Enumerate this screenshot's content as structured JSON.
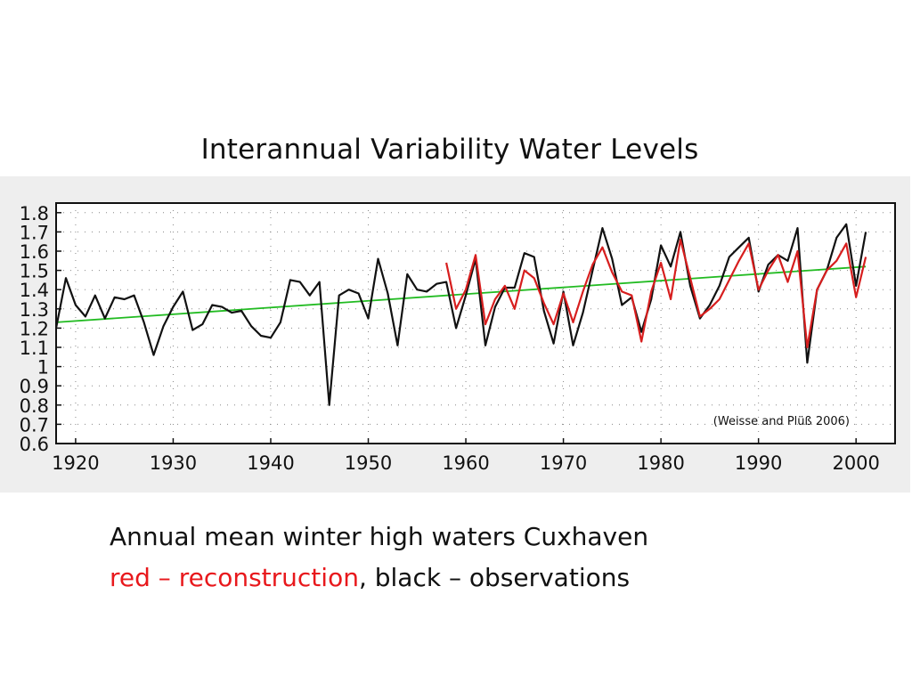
{
  "title": "Interannual Variability Water Levels",
  "caption": {
    "line1": "Annual mean winter high waters Cuxhaven",
    "red_part": "red – reconstruction",
    "black_part": ", black – observations"
  },
  "chart_data": {
    "type": "line",
    "annotation": "(Weisse and Plüß 2006)",
    "xlim": [
      1918,
      2004
    ],
    "ylim": [
      0.6,
      1.85
    ],
    "x_ticks": [
      1920,
      1930,
      1940,
      1950,
      1960,
      1970,
      1980,
      1990,
      2000
    ],
    "y_ticks": [
      0.6,
      0.7,
      0.8,
      0.9,
      1,
      1.1,
      1.2,
      1.3,
      1.4,
      1.5,
      1.6,
      1.7,
      1.8
    ],
    "y_tick_labels": [
      "0.6",
      "0.7",
      "0.8",
      "0.9",
      "1",
      "1.1",
      "1.2",
      "1.3",
      "1.4",
      "1.5",
      "1.6",
      "1.7",
      "1.8"
    ],
    "grid": true,
    "colors": {
      "observations": "#111111",
      "reconstruction": "#d71e1e",
      "trend": "#22bb22"
    },
    "series": [
      {
        "key": "observations",
        "x": [
          1918,
          1919,
          1920,
          1921,
          1922,
          1923,
          1924,
          1925,
          1926,
          1927,
          1928,
          1929,
          1930,
          1931,
          1932,
          1933,
          1934,
          1935,
          1936,
          1937,
          1938,
          1939,
          1940,
          1941,
          1942,
          1943,
          1944,
          1945,
          1946,
          1947,
          1948,
          1949,
          1950,
          1951,
          1952,
          1953,
          1954,
          1955,
          1956,
          1957,
          1958,
          1959,
          1960,
          1961,
          1962,
          1963,
          1964,
          1965,
          1966,
          1967,
          1968,
          1969,
          1970,
          1971,
          1972,
          1973,
          1974,
          1975,
          1976,
          1977,
          1978,
          1979,
          1980,
          1981,
          1982,
          1983,
          1984,
          1985,
          1986,
          1987,
          1988,
          1989,
          1990,
          1991,
          1992,
          1993,
          1994,
          1995,
          1996,
          1997,
          1998,
          1999,
          2000,
          2001
        ],
        "y": [
          1.2,
          1.46,
          1.32,
          1.26,
          1.37,
          1.25,
          1.36,
          1.35,
          1.37,
          1.23,
          1.06,
          1.21,
          1.31,
          1.39,
          1.19,
          1.22,
          1.32,
          1.31,
          1.28,
          1.29,
          1.21,
          1.16,
          1.15,
          1.23,
          1.45,
          1.44,
          1.37,
          1.44,
          0.8,
          1.37,
          1.4,
          1.38,
          1.25,
          1.56,
          1.38,
          1.11,
          1.48,
          1.4,
          1.39,
          1.43,
          1.44,
          1.2,
          1.37,
          1.56,
          1.11,
          1.31,
          1.41,
          1.41,
          1.59,
          1.57,
          1.29,
          1.12,
          1.39,
          1.11,
          1.28,
          1.5,
          1.72,
          1.56,
          1.32,
          1.36,
          1.18,
          1.35,
          1.63,
          1.52,
          1.7,
          1.42,
          1.25,
          1.32,
          1.42,
          1.57,
          1.62,
          1.67,
          1.39,
          1.53,
          1.58,
          1.55,
          1.72,
          1.02,
          1.4,
          1.5,
          1.67,
          1.74,
          1.42,
          1.7
        ]
      },
      {
        "key": "reconstruction",
        "x": [
          1958,
          1959,
          1960,
          1961,
          1962,
          1963,
          1964,
          1965,
          1966,
          1967,
          1968,
          1969,
          1970,
          1971,
          1972,
          1973,
          1974,
          1975,
          1976,
          1977,
          1978,
          1979,
          1980,
          1981,
          1982,
          1983,
          1984,
          1985,
          1986,
          1987,
          1988,
          1989,
          1990,
          1991,
          1992,
          1993,
          1994,
          1995,
          1996,
          1997,
          1998,
          1999,
          2000,
          2001
        ],
        "y": [
          1.54,
          1.3,
          1.4,
          1.58,
          1.22,
          1.35,
          1.42,
          1.3,
          1.5,
          1.46,
          1.33,
          1.22,
          1.38,
          1.23,
          1.39,
          1.53,
          1.62,
          1.49,
          1.39,
          1.37,
          1.13,
          1.39,
          1.54,
          1.35,
          1.66,
          1.46,
          1.26,
          1.3,
          1.35,
          1.45,
          1.55,
          1.64,
          1.4,
          1.5,
          1.58,
          1.44,
          1.6,
          1.1,
          1.4,
          1.5,
          1.55,
          1.64,
          1.36,
          1.57
        ]
      },
      {
        "key": "trend",
        "x": [
          1918,
          2001
        ],
        "y": [
          1.23,
          1.52
        ]
      }
    ]
  }
}
